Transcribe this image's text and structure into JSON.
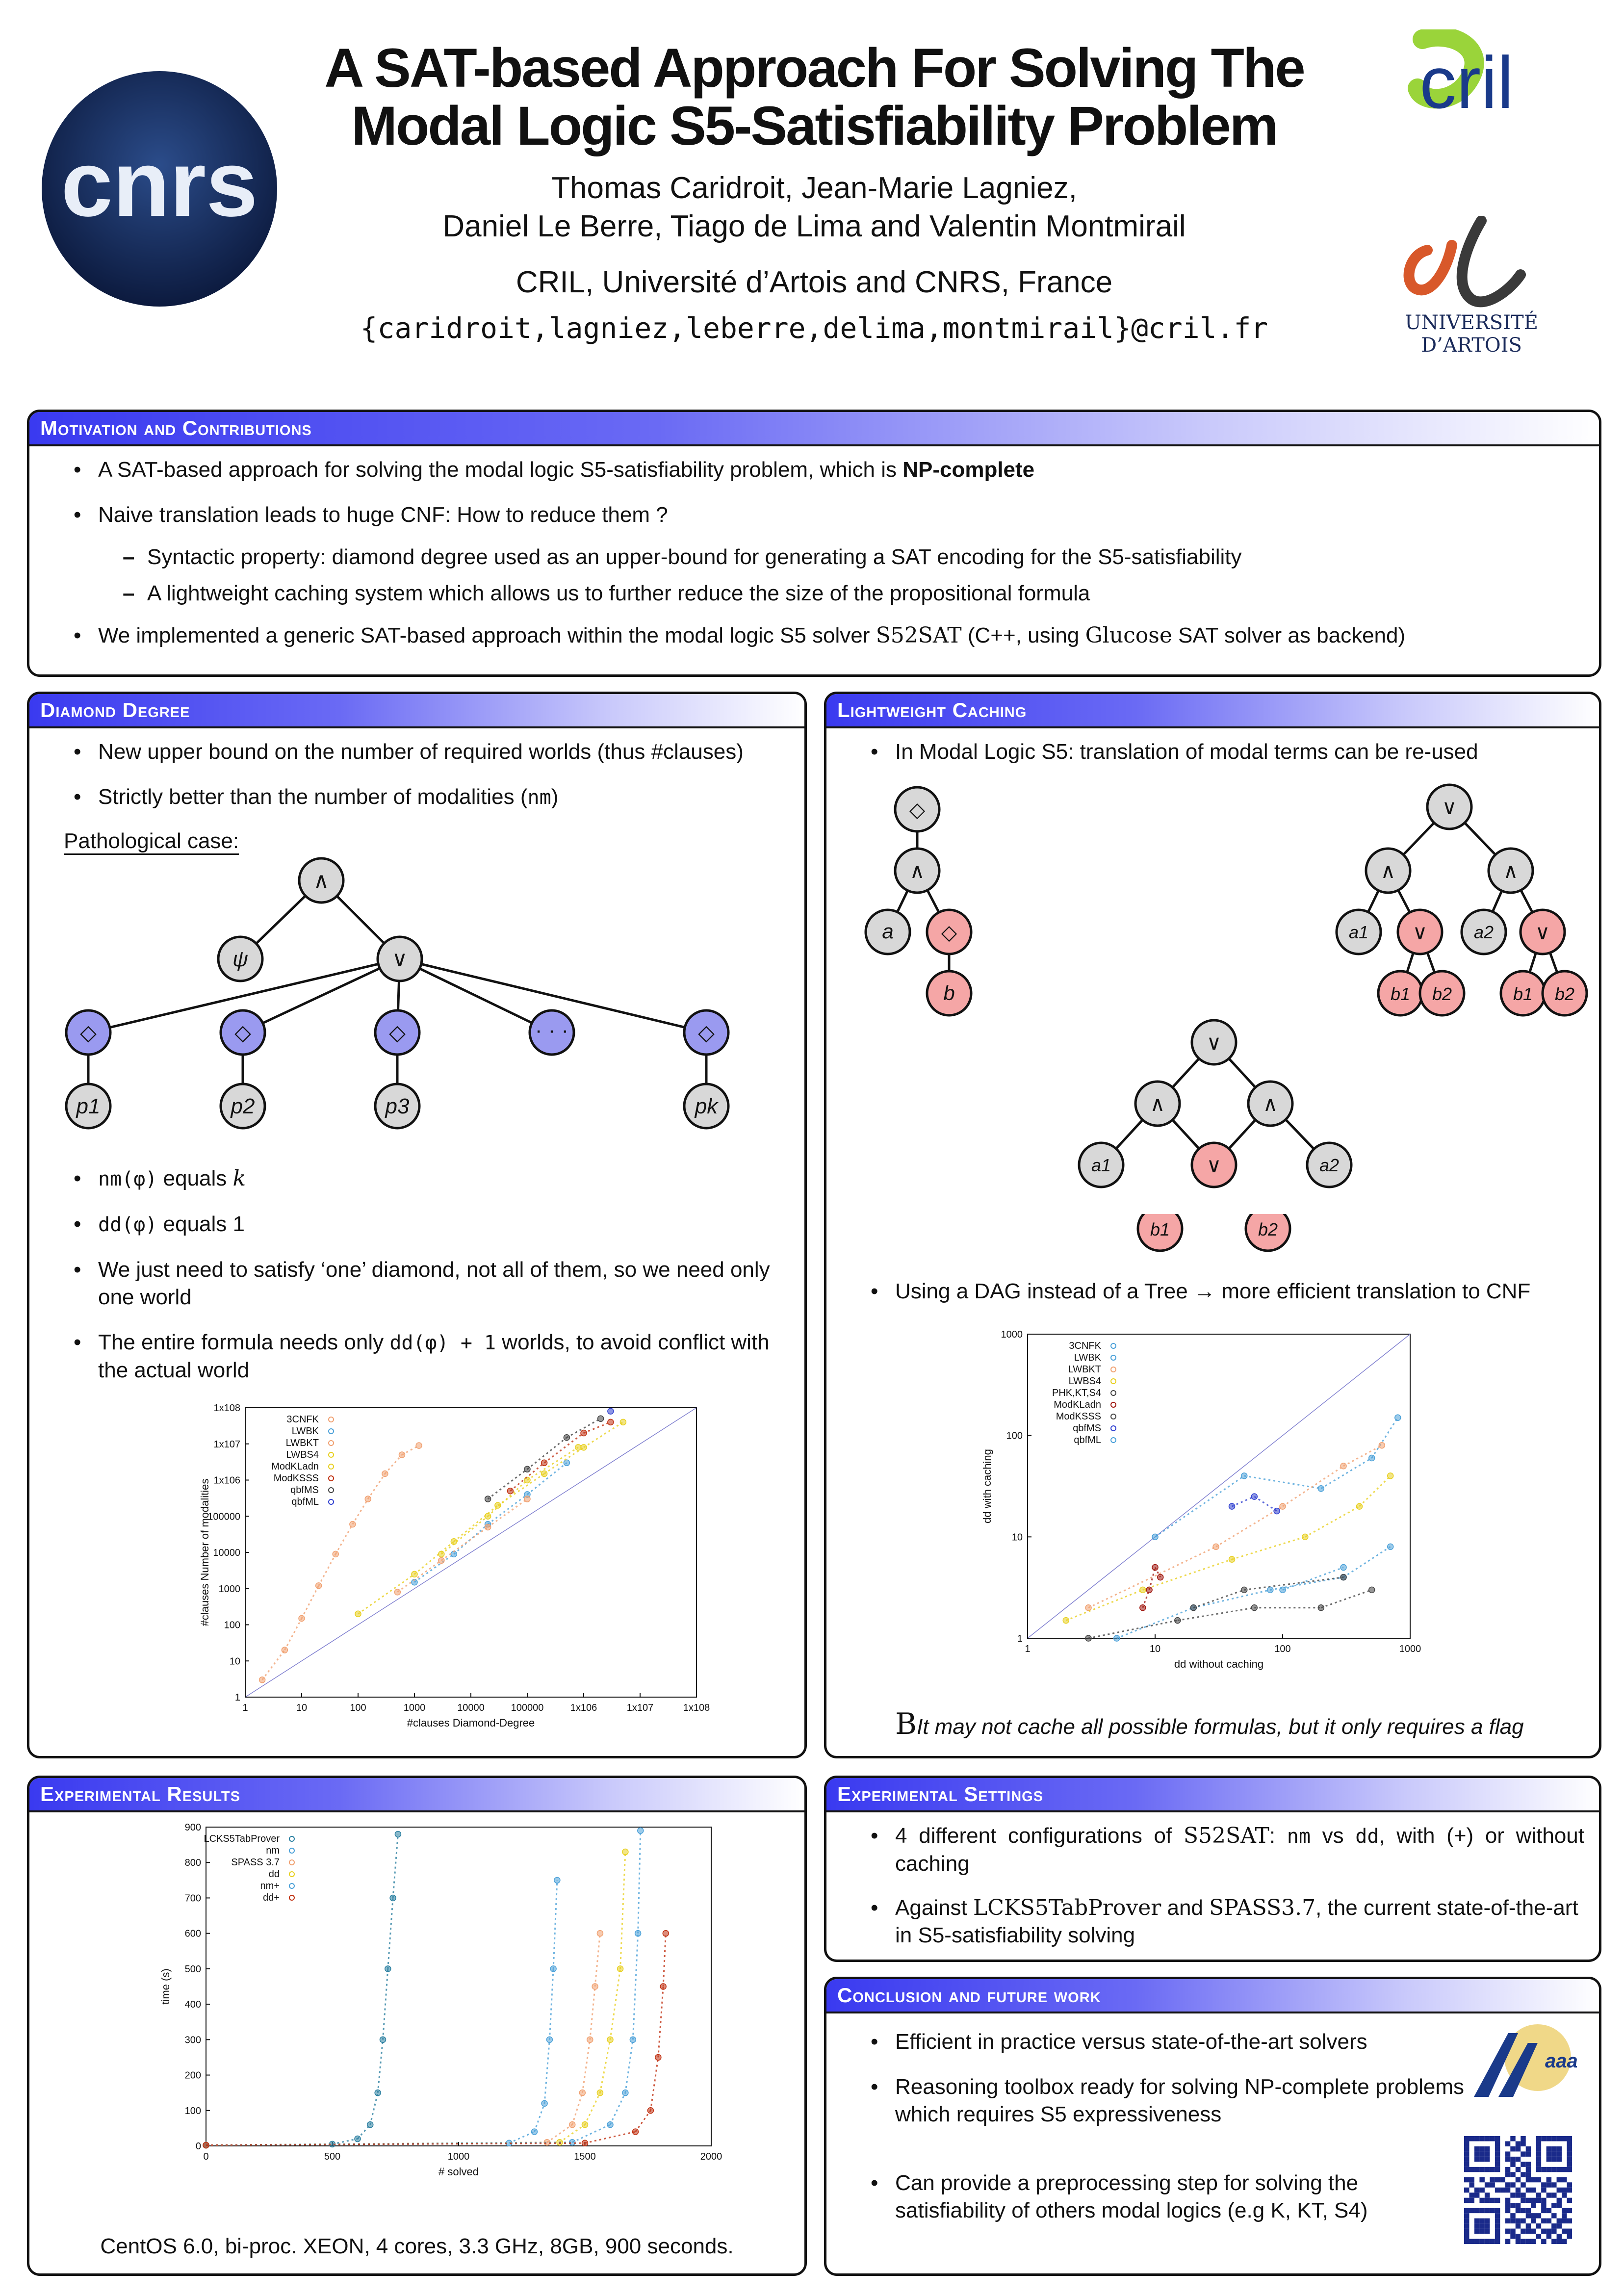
{
  "header": {
    "title_line1": "A SAT-based Approach For Solving The",
    "title_line2": "Modal Logic S5-Satisfiability Problem",
    "authors_line1": "Thomas Caridroit, Jean-Marie Lagniez,",
    "authors_line2": "Daniel Le Berre, Tiago de Lima and Valentin Montmirail",
    "affiliation": "CRIL, Université d’Artois and CNRS, France",
    "emails": "{caridroit,lagniez,leberre,delima,montmirail}@cril.fr",
    "logo_left": "cnrs",
    "logo_right_top": "cril",
    "logo_right_bottom_text": "UNIVERSITÉ D’ARTOIS"
  },
  "motivation": {
    "heading": "Motivation and Contributions",
    "b1_pre": "A SAT-based approach for solving the modal logic S5-satisfiability problem, which is ",
    "b1_bold": "NP-complete",
    "b2": "Naive translation leads to huge CNF: How to reduce them ?",
    "d1": "Syntactic property: diamond degree used as an upper-bound for generating a SAT encoding for the S5-satisfiability",
    "d2": "A lightweight caching system which allows us to further reduce the size of the propositional formula",
    "b3_pre": "We implemented a generic SAT-based approach within the modal logic S5 solver ",
    "b3_solver": "S52SAT",
    "b3_mid": "  (C++, using ",
    "b3_glucose": "Glucose",
    "b3_post": " SAT solver as backend)"
  },
  "diamond": {
    "heading": "Diamond Degree",
    "b1": "New upper bound on the number of required worlds (thus #clauses)",
    "b2_pre": "Strictly better than the number of modalities (",
    "b2_code": "nm",
    "b2_post": ")",
    "pathological": "Pathological case:",
    "tree": {
      "root": "∧",
      "psi": "ψ",
      "or": "∨",
      "dia": "◇",
      "dots": "· · ·",
      "p1": "p1",
      "p2": "p2",
      "p3": "p3",
      "pk": "pk"
    },
    "b3_code": "nm(φ)",
    "b3_post": " equals ",
    "b3_k": "k",
    "b4_code": "dd(φ)",
    "b4_post": " equals 1",
    "b5": "We just need to satisfy ‘one’ diamond, not all of them, so we need only one world",
    "b6_pre": "The entire formula needs only ",
    "b6_code": "dd(φ) + 1",
    "b6_post": " worlds, to avoid conflict with the actual world"
  },
  "caching": {
    "heading": "Lightweight Caching",
    "b1": "In Modal Logic S5: translation of modal terms can be re-used",
    "tree_labels": {
      "dia": "◇",
      "and": "∧",
      "or": "∨",
      "a": "a",
      "b": "b",
      "a1": "a1",
      "a2": "a2",
      "b1": "b1",
      "b2": "b2"
    },
    "b2": "Using a DAG instead of a Tree → more efficient translation to CNF",
    "footnote_drop": "B",
    "footnote": "It may not cache all possible formulas, but it only requires a flag"
  },
  "results": {
    "heading": "Experimental Results",
    "caption": "CentOS 6.0, bi-proc. XEON, 4 cores, 3.3 GHz, 8GB, 900 seconds."
  },
  "settings": {
    "heading": "Experimental Settings",
    "b1_pre": "4 different configurations of ",
    "b1_s": "S52SAT",
    "b1_mid": ": ",
    "b1_nm": "nm",
    "b1_vs": " vs ",
    "b1_dd": "dd",
    "b1_post": ", with (+) or without caching",
    "b2_pre": "Against ",
    "b2_a": "LCKS5TabProver",
    "b2_and": " and ",
    "b2_b": "SPASS3.7",
    "b2_post": ", the current state-of-the-art in S5-satisfiability solving"
  },
  "conclusion": {
    "heading": "Conclusion and future work",
    "b1": "Efficient in practice versus state-of-the-art solvers",
    "b2": "Reasoning toolbox ready for solving NP-complete problems which requires S5 expressiveness",
    "b3": "Can provide a preprocessing step for solving the satisfiability of others modal logics (e.g K, KT, S4)",
    "logo": "aaai"
  },
  "chart_data": [
    {
      "type": "scatter",
      "title": "",
      "xlabel": "#clauses Diamond-Degree",
      "ylabel": "#clauses Number of modalities",
      "xscale": "log",
      "yscale": "log",
      "xlim": [
        1,
        100000000
      ],
      "ylim": [
        1,
        100000000
      ],
      "x_ticks": [
        "1",
        "10",
        "100",
        "1000",
        "10000",
        "100000",
        "1x10^6",
        "1x10^7",
        "1x10^8"
      ],
      "y_ticks": [
        "1",
        "10",
        "100",
        "1000",
        "10000",
        "100000",
        "1x10^6",
        "1x10^7",
        "1x10^8"
      ],
      "legend_position": "top-left",
      "series": [
        {
          "name": "3CNFK",
          "color": "#f0a070",
          "x": [
            2,
            5,
            10,
            20,
            40,
            80,
            150,
            300,
            600,
            1200
          ],
          "y": [
            3,
            20,
            150,
            1200,
            9000,
            60000,
            300000,
            1500000,
            5000000,
            9000000
          ]
        },
        {
          "name": "LWBK",
          "color": "#4aa0d8",
          "x": [
            1000,
            5000,
            20000,
            100000,
            500000
          ],
          "y": [
            1500,
            9000,
            60000,
            400000,
            3000000
          ]
        },
        {
          "name": "LWBKT",
          "color": "#f0a070",
          "x": [
            500,
            3000,
            20000,
            100000
          ],
          "y": [
            800,
            6000,
            50000,
            300000
          ]
        },
        {
          "name": "LWBS4",
          "color": "#e8d020",
          "x": [
            100,
            1000,
            5000,
            30000,
            200000,
            1000000,
            5000000
          ],
          "y": [
            200,
            2500,
            20000,
            200000,
            1500000,
            8000000,
            40000000
          ]
        },
        {
          "name": "ModKLadn",
          "color": "#e8d020",
          "x": [
            3000,
            20000,
            100000,
            800000
          ],
          "y": [
            9000,
            100000,
            1000000,
            8000000
          ]
        },
        {
          "name": "ModKSSS",
          "color": "#c03010",
          "x": [
            50000,
            200000,
            1000000,
            3000000
          ],
          "y": [
            500000,
            3000000,
            20000000,
            40000000
          ]
        },
        {
          "name": "qbfMS",
          "color": "#444444",
          "x": [
            20000,
            100000,
            500000,
            2000000
          ],
          "y": [
            300000,
            2000000,
            15000000,
            50000000
          ]
        },
        {
          "name": "qbfML",
          "color": "#3040d0",
          "x": [
            3000000
          ],
          "y": [
            80000000
          ]
        }
      ]
    },
    {
      "type": "scatter",
      "title": "",
      "xlabel": "dd without caching",
      "ylabel": "dd with caching",
      "xscale": "log",
      "yscale": "log",
      "xlim": [
        1,
        1000
      ],
      "ylim": [
        1,
        1000
      ],
      "x_ticks": [
        "1",
        "10",
        "100",
        "1000"
      ],
      "y_ticks": [
        "1",
        "10",
        "100",
        "1000"
      ],
      "legend_position": "top-left",
      "series": [
        {
          "name": "3CNFK",
          "color": "#4aa0d8",
          "x": [
            5,
            20,
            80,
            300,
            700
          ],
          "y": [
            1,
            2,
            3,
            4,
            8
          ]
        },
        {
          "name": "LWBK",
          "color": "#4aa0d8",
          "x": [
            10,
            50,
            200,
            500,
            800
          ],
          "y": [
            10,
            40,
            30,
            60,
            150
          ]
        },
        {
          "name": "LWBKT",
          "color": "#f0a070",
          "x": [
            3,
            30,
            100,
            300,
            600
          ],
          "y": [
            2,
            8,
            20,
            50,
            80
          ]
        },
        {
          "name": "LWBS4",
          "color": "#e8d020",
          "x": [
            2,
            8,
            40,
            150,
            400,
            700
          ],
          "y": [
            1.5,
            3,
            6,
            10,
            20,
            40
          ]
        },
        {
          "name": "PHK,KT,S4",
          "color": "#444444",
          "x": [
            3,
            15,
            60,
            200,
            500
          ],
          "y": [
            1,
            1.5,
            2,
            2,
            3
          ]
        },
        {
          "name": "ModKLadn",
          "color": "#a01810",
          "x": [
            8,
            9,
            10,
            11
          ],
          "y": [
            2,
            3,
            5,
            4
          ]
        },
        {
          "name": "ModKSSS",
          "color": "#444444",
          "x": [
            20,
            50,
            300
          ],
          "y": [
            2,
            3,
            4
          ]
        },
        {
          "name": "qbfMS",
          "color": "#3040d0",
          "x": [
            40,
            60,
            90
          ],
          "y": [
            20,
            25,
            18
          ]
        },
        {
          "name": "qbfML",
          "color": "#4aa0d8",
          "x": [
            100,
            300
          ],
          "y": [
            3,
            5
          ]
        }
      ]
    },
    {
      "type": "scatter",
      "title": "",
      "xlabel": "# solved",
      "ylabel": "time (s)",
      "xlim": [
        0,
        2000
      ],
      "ylim": [
        0,
        900
      ],
      "x_ticks": [
        0,
        500,
        1000,
        1500,
        2000
      ],
      "y_ticks": [
        0,
        100,
        200,
        300,
        400,
        500,
        600,
        700,
        800,
        900
      ],
      "legend_position": "top-left",
      "series": [
        {
          "name": "LCKS5TabProver",
          "color": "#2a7fa0",
          "x": [
            0,
            500,
            600,
            650,
            680,
            700,
            720,
            740,
            760
          ],
          "y": [
            2,
            5,
            20,
            60,
            150,
            300,
            500,
            700,
            880
          ]
        },
        {
          "name": "nm",
          "color": "#4aa0d8",
          "x": [
            0,
            1200,
            1300,
            1340,
            1360,
            1375,
            1390
          ],
          "y": [
            2,
            8,
            40,
            120,
            300,
            500,
            750
          ]
        },
        {
          "name": "SPASS 3.7",
          "color": "#f0a070",
          "x": [
            0,
            1350,
            1450,
            1490,
            1520,
            1540,
            1560
          ],
          "y": [
            2,
            10,
            60,
            150,
            300,
            450,
            600
          ]
        },
        {
          "name": "dd",
          "color": "#e8d020",
          "x": [
            0,
            1400,
            1500,
            1560,
            1600,
            1640,
            1660
          ],
          "y": [
            2,
            10,
            60,
            150,
            300,
            500,
            830
          ]
        },
        {
          "name": "nm+",
          "color": "#4aa0d8",
          "x": [
            0,
            1450,
            1600,
            1660,
            1690,
            1710,
            1720
          ],
          "y": [
            2,
            10,
            60,
            150,
            300,
            600,
            890
          ]
        },
        {
          "name": "dd+",
          "color": "#c03010",
          "x": [
            0,
            1500,
            1700,
            1760,
            1790,
            1810,
            1820
          ],
          "y": [
            2,
            8,
            40,
            100,
            250,
            450,
            600
          ]
        }
      ]
    }
  ]
}
